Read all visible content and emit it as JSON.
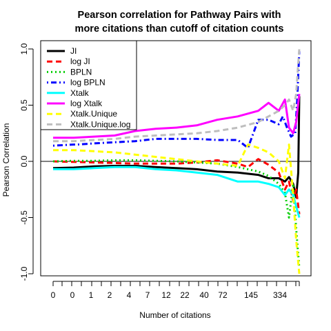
{
  "chart_data": {
    "type": "line",
    "title": [
      "Pearson correlation for Pathway Pairs with",
      "more citations than cutoff of citation counts"
    ],
    "xlabel": "Number of citations",
    "ylabel": "Pearson Correlation",
    "ylim": [
      -1.0,
      1.0
    ],
    "yticks": [
      "-1.0",
      "-0.5",
      "0.0",
      "0.5",
      "1.0"
    ],
    "xticks": [
      "0",
      "0",
      "1",
      "2",
      "4",
      "7",
      "12",
      "22",
      "40",
      "72",
      "145",
      "334"
    ],
    "reference_line_y": 0,
    "legend_position": "top-left",
    "series": [
      {
        "name": "JI",
        "color": "#000000",
        "dash": "solid",
        "x": [
          0,
          1,
          2,
          3,
          4,
          5,
          6,
          7,
          8,
          9,
          10,
          10.5,
          11,
          11.3,
          11.5,
          11.7,
          11.85,
          11.95,
          12
        ],
        "y": [
          -0.06,
          -0.055,
          -0.045,
          -0.04,
          -0.04,
          -0.05,
          -0.06,
          -0.07,
          -0.09,
          -0.1,
          -0.12,
          -0.15,
          -0.15,
          -0.18,
          -0.14,
          -0.2,
          -0.32,
          -0.1,
          0.58
        ]
      },
      {
        "name": "log JI",
        "color": "#ff0000",
        "dash": "dashed",
        "x": [
          0,
          1,
          2,
          3,
          4,
          5,
          6,
          7,
          8,
          9,
          9.5,
          10,
          10.5,
          11,
          11.3,
          11.5,
          11.7,
          11.85,
          12
        ],
        "y": [
          0.0,
          -0.005,
          -0.01,
          -0.015,
          -0.02,
          -0.02,
          -0.02,
          -0.01,
          0.01,
          -0.02,
          -0.05,
          0.02,
          -0.03,
          -0.1,
          -0.25,
          -0.18,
          -0.35,
          -0.25,
          -0.47
        ]
      },
      {
        "name": "BPLN",
        "color": "#00cd00",
        "dash": "dotted",
        "x": [
          0,
          1,
          2,
          3,
          4,
          5,
          6,
          7,
          8,
          9,
          10,
          10.5,
          11,
          11.3,
          11.5,
          11.7,
          11.85,
          12
        ],
        "y": [
          0.0,
          0.005,
          0.005,
          0.01,
          0.01,
          0.005,
          0.0,
          -0.01,
          -0.02,
          -0.05,
          -0.09,
          -0.13,
          -0.2,
          -0.28,
          -0.5,
          -0.2,
          -0.6,
          -0.95
        ]
      },
      {
        "name": "log BPLN",
        "color": "#0000ff",
        "dash": "dotdash",
        "x": [
          0,
          1,
          1.2,
          2,
          3,
          4,
          5,
          6,
          7,
          8,
          9,
          9.5,
          10,
          10.5,
          11,
          11.2,
          11.4,
          11.6,
          11.8,
          11.9,
          12
        ],
        "y": [
          0.14,
          0.15,
          0.15,
          0.16,
          0.17,
          0.18,
          0.2,
          0.2,
          0.2,
          0.19,
          0.19,
          0.12,
          0.37,
          0.37,
          0.33,
          0.4,
          0.3,
          0.22,
          0.25,
          0.55,
          0.98
        ]
      },
      {
        "name": "Xtalk",
        "color": "#00ffff",
        "dash": "solid",
        "x": [
          0,
          1,
          2,
          3,
          4,
          5,
          6,
          7,
          8,
          9,
          10,
          10.5,
          11,
          11.3,
          11.5,
          11.7,
          11.85,
          12
        ],
        "y": [
          -0.07,
          -0.07,
          -0.06,
          -0.05,
          -0.05,
          -0.07,
          -0.08,
          -0.1,
          -0.12,
          -0.18,
          -0.18,
          -0.2,
          -0.23,
          -0.3,
          -0.25,
          -0.3,
          -0.4,
          -0.5
        ]
      },
      {
        "name": "log Xtalk",
        "color": "#ff00ff",
        "dash": "solid",
        "x": [
          0,
          1,
          2,
          3,
          4,
          5,
          6,
          7,
          8,
          9,
          10,
          10.5,
          11,
          11.3,
          11.5,
          11.7,
          11.85,
          12
        ],
        "y": [
          0.21,
          0.21,
          0.22,
          0.23,
          0.27,
          0.29,
          0.3,
          0.32,
          0.37,
          0.4,
          0.45,
          0.52,
          0.45,
          0.55,
          0.3,
          0.25,
          0.35,
          0.6
        ]
      },
      {
        "name": "Xtalk.Unique",
        "color": "#ffff00",
        "dash": "dashed",
        "x": [
          0,
          1,
          2,
          3,
          4,
          5,
          6,
          7,
          8,
          9,
          9.5,
          10,
          10.5,
          11,
          11.3,
          11.5,
          11.7,
          11.85,
          12
        ],
        "y": [
          0.1,
          0.1,
          0.09,
          0.08,
          0.06,
          0.04,
          0.02,
          0.0,
          -0.02,
          -0.04,
          0.15,
          0.12,
          0.08,
          0.0,
          -0.15,
          0.15,
          -0.3,
          -0.7,
          -1.0
        ]
      },
      {
        "name": "Xtalk.Unique.log",
        "color": "#bebebe",
        "dash": "dashed",
        "x": [
          0,
          1,
          2,
          3,
          4,
          5,
          6,
          7,
          8,
          9,
          10,
          10.5,
          11,
          11.3,
          11.5,
          11.7,
          11.85,
          12
        ],
        "y": [
          0.18,
          0.18,
          0.19,
          0.2,
          0.22,
          0.23,
          0.24,
          0.25,
          0.27,
          0.3,
          0.35,
          0.4,
          0.45,
          0.5,
          0.55,
          0.45,
          0.6,
          1.0
        ]
      }
    ]
  }
}
